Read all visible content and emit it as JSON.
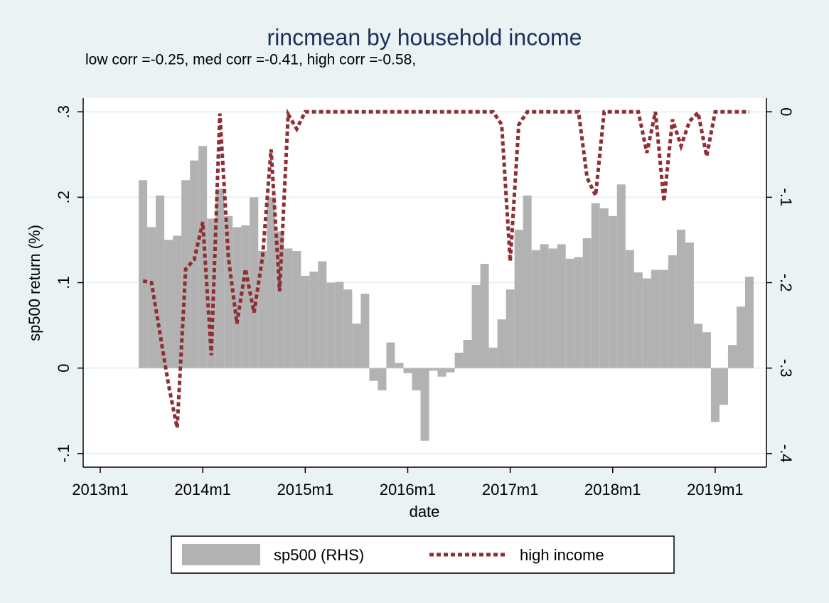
{
  "chart_data": {
    "type": "bar",
    "title": "rincmean by household income",
    "subtitle": "low corr =-0.25, med corr =-0.41, high corr =-0.58,",
    "x_label": "date",
    "y_label": "sp500 return (%)",
    "x": [
      "2013m6",
      "2013m7",
      "2013m8",
      "2013m9",
      "2013m10",
      "2013m11",
      "2013m12",
      "2014m1",
      "2014m2",
      "2014m3",
      "2014m4",
      "2014m5",
      "2014m6",
      "2014m7",
      "2014m8",
      "2014m9",
      "2014m10",
      "2014m11",
      "2014m12",
      "2015m1",
      "2015m2",
      "2015m3",
      "2015m4",
      "2015m5",
      "2015m6",
      "2015m7",
      "2015m8",
      "2015m9",
      "2015m10",
      "2015m11",
      "2015m12",
      "2016m1",
      "2016m2",
      "2016m3",
      "2016m4",
      "2016m5",
      "2016m6",
      "2016m7",
      "2016m8",
      "2016m9",
      "2016m10",
      "2016m11",
      "2016m12",
      "2017m1",
      "2017m2",
      "2017m3",
      "2017m4",
      "2017m5",
      "2017m6",
      "2017m7",
      "2017m8",
      "2017m9",
      "2017m10",
      "2017m11",
      "2017m12",
      "2018m1",
      "2018m2",
      "2018m3",
      "2018m4",
      "2018m5",
      "2018m6",
      "2018m7",
      "2018m8",
      "2018m9",
      "2018m10",
      "2018m11",
      "2018m12",
      "2019m1",
      "2019m2",
      "2019m3",
      "2019m4",
      "2019m5"
    ],
    "series": [
      {
        "name": "sp500 (RHS)",
        "type": "bar",
        "color": "#b2b2b2",
        "values": [
          0.22,
          0.165,
          0.202,
          0.15,
          0.155,
          0.22,
          0.243,
          0.26,
          0.175,
          0.21,
          0.178,
          0.165,
          0.167,
          0.2,
          0.137,
          0.2,
          0.16,
          0.14,
          0.137,
          0.108,
          0.113,
          0.125,
          0.1,
          0.101,
          0.092,
          0.052,
          0.087,
          -0.015,
          -0.026,
          0.03,
          0.006,
          -0.006,
          -0.026,
          -0.085,
          -0.003,
          -0.01,
          -0.005,
          0.018,
          0.033,
          0.097,
          0.122,
          0.024,
          0.057,
          0.092,
          0.162,
          0.202,
          0.138,
          0.145,
          0.14,
          0.145,
          0.128,
          0.13,
          0.152,
          0.193,
          0.187,
          0.178,
          0.215,
          0.138,
          0.112,
          0.105,
          0.115,
          0.115,
          0.132,
          0.162,
          0.147,
          0.052,
          0.042,
          -0.063,
          -0.043,
          0.027,
          0.072,
          0.107
        ]
      },
      {
        "name": "high income",
        "type": "line",
        "axis": "y2",
        "color": "#8e2f36",
        "values": [
          -0.198,
          -0.2,
          -0.26,
          -0.32,
          -0.37,
          -0.184,
          -0.173,
          -0.129,
          -0.285,
          -0.002,
          -0.17,
          -0.248,
          -0.184,
          -0.235,
          -0.17,
          -0.044,
          -0.21,
          -0.003,
          -0.02,
          0,
          0,
          0,
          0,
          0,
          0,
          0,
          0,
          0,
          0,
          0,
          0,
          0,
          0,
          0,
          0,
          0,
          0,
          0,
          0,
          0,
          0,
          0,
          -0.015,
          -0.175,
          -0.015,
          0,
          0,
          0,
          0,
          0,
          0,
          0,
          -0.077,
          -0.098,
          0,
          0,
          0,
          0,
          0,
          -0.048,
          0,
          -0.105,
          -0.009,
          -0.04,
          -0.011,
          -0.001,
          -0.052,
          0,
          0,
          0,
          0,
          0
        ]
      }
    ],
    "xlim": [
      "2012m11",
      "2019m7"
    ],
    "xticks": [
      "2013m1",
      "2014m1",
      "2015m1",
      "2016m1",
      "2017m1",
      "2018m1",
      "2019m1"
    ],
    "ylim": [
      -0.116,
      0.316
    ],
    "yticks": [
      {
        "value": -0.1,
        "label": "-.1"
      },
      0,
      {
        "value": 0.1,
        "label": ".1"
      },
      {
        "value": 0.2,
        "label": ".2"
      },
      {
        "value": 0.3,
        "label": ".3"
      }
    ],
    "y2lim": [
      -0.416,
      0.016
    ],
    "y2ticks": [
      {
        "value": -0.4,
        "label": "-.4"
      },
      {
        "value": -0.3,
        "label": "-.3"
      },
      {
        "value": -0.2,
        "label": "-.2"
      },
      {
        "value": -0.1,
        "label": "-.1"
      },
      0
    ],
    "grid": true
  }
}
